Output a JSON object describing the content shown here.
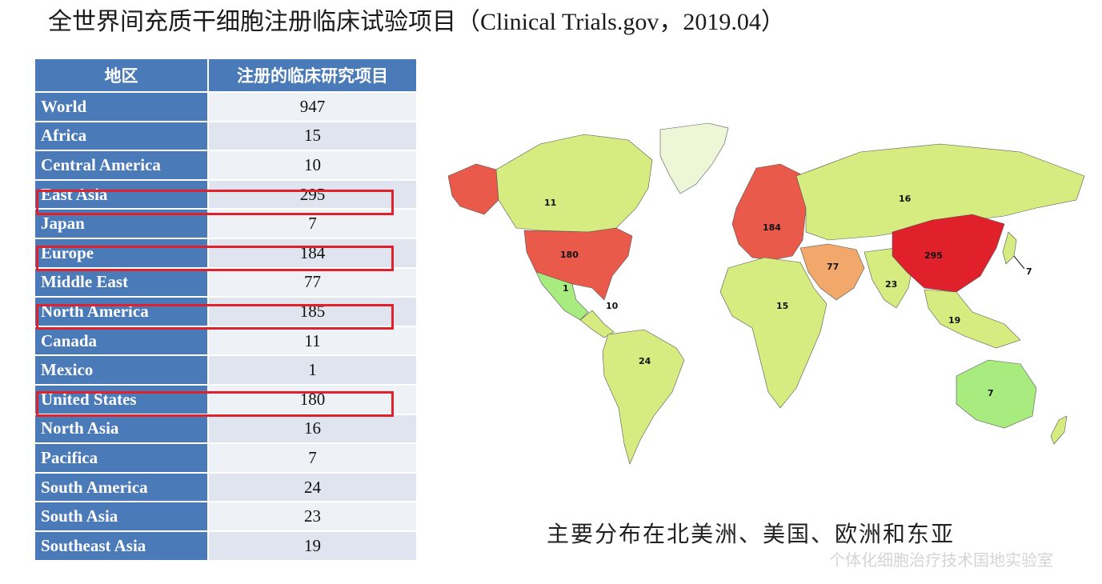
{
  "title": "全世界间充质干细胞注册临床试验项目（Clinical Trials.gov，2019.04）",
  "table": {
    "headers": [
      "地区",
      "注册的临床研究项目"
    ],
    "rows": [
      {
        "region": "World",
        "value": "947"
      },
      {
        "region": "Africa",
        "value": "15"
      },
      {
        "region": "Central America",
        "value": "10"
      },
      {
        "region": "East Asia",
        "value": "295"
      },
      {
        "region": "Japan",
        "value": "7"
      },
      {
        "region": "Europe",
        "value": "184"
      },
      {
        "region": "Middle East",
        "value": "77"
      },
      {
        "region": "North America",
        "value": "185"
      },
      {
        "region": "Canada",
        "value": "11"
      },
      {
        "region": "Mexico",
        "value": "1"
      },
      {
        "region": "United States",
        "value": "180"
      },
      {
        "region": "North Asia",
        "value": "16"
      },
      {
        "region": "Pacifica",
        "value": "7"
      },
      {
        "region": "South America",
        "value": "24"
      },
      {
        "region": "South Asia",
        "value": "23"
      },
      {
        "region": "Southeast Asia",
        "value": "19"
      }
    ]
  },
  "map": {
    "labels": {
      "canada": "11",
      "us": "180",
      "mexico": "1",
      "central_america": "10",
      "south_america": "24",
      "europe": "184",
      "north_asia": "16",
      "middle_east": "77",
      "africa": "15",
      "south_asia": "23",
      "east_asia": "295",
      "japan": "7",
      "southeast_asia": "19",
      "pacifica": "7"
    },
    "colors": {
      "high": "#e0202a",
      "upper": "#ea5a4a",
      "mid": "#f2a86a",
      "low": "#d6ec80",
      "lowest": "#a8ec80",
      "none": "#eef6d8"
    }
  },
  "caption": "主要分布在北美洲、美国、欧洲和东亚",
  "watermark": "个体化细胞治疗技术国地实验室"
}
